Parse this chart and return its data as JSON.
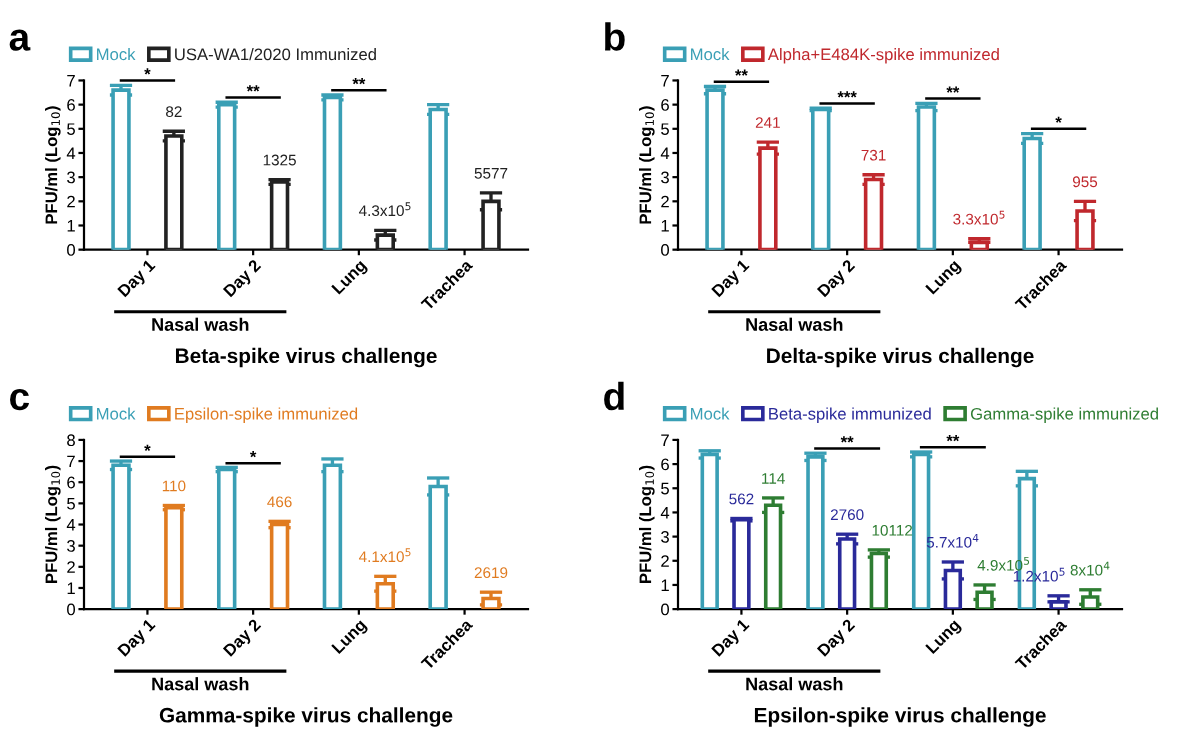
{
  "chart_data": [
    {
      "type": "bar",
      "title": "a",
      "xlabel": "Beta-spike virus challenge",
      "ylabel": "PFU/ml (Log$_{10}$)",
      "categories": [
        "Day 1",
        "Day 2",
        "Lung",
        "Trachea"
      ],
      "ylim": [
        0,
        7
      ],
      "yticks": [
        0,
        1,
        2,
        3,
        4,
        5,
        6,
        7
      ],
      "legend": "top left",
      "grid": false,
      "series": [
        {
          "name": "Mock",
          "color": "#3a9fb5",
          "values": [
            6.6,
            6.0,
            6.3,
            5.8
          ],
          "errors": [
            0.2,
            0.1,
            0.1,
            0.2
          ]
        },
        {
          "name": "USA-WA1/2020 Immunized",
          "color": "#222222",
          "values": [
            4.7,
            2.8,
            0.6,
            2.0
          ],
          "errors": [
            0.2,
            0.1,
            0.2,
            0.35
          ]
        }
      ],
      "annotations": [
        "*",
        "**",
        "**",
        "82",
        "1325",
        "4.3x10$^{5}$",
        "5577",
        "Nasal wash"
      ]
    },
    {
      "type": "bar",
      "title": "b",
      "xlabel": "Delta-spike virus challenge",
      "ylabel": "PFU/ml (Log$_{10}$)",
      "categories": [
        "Day 1",
        "Day 2",
        "Lung",
        "Trachea"
      ],
      "ylim": [
        0,
        7
      ],
      "yticks": [
        0,
        1,
        2,
        3,
        4,
        5,
        6,
        7
      ],
      "legend": "top left",
      "grid": false,
      "series": [
        {
          "name": "Mock",
          "color": "#3a9fb5",
          "values": [
            6.6,
            5.8,
            5.9,
            4.6
          ],
          "errors": [
            0.15,
            0.05,
            0.15,
            0.2
          ]
        },
        {
          "name": "Alpha+E484K-spike immunized",
          "color": "#c0282d",
          "values": [
            4.2,
            2.9,
            0.3,
            1.6
          ],
          "errors": [
            0.25,
            0.2,
            [
              0.3,
              0.45
            ],
            0.4
          ]
        }
      ],
      "annotations": [
        "**",
        "***",
        "**",
        "*",
        "241",
        "731",
        "3.3x10$^{5}$",
        "955",
        "Nasal wash"
      ]
    },
    {
      "type": "bar",
      "title": "c",
      "xlabel": "Gamma-spike virus challenge",
      "ylabel": "PFU/ml (Log$_{10}$)",
      "categories": [
        "Day 1",
        "Day 2",
        "Lung",
        "Trachea"
      ],
      "ylim": [
        0,
        8
      ],
      "yticks": [
        0,
        1,
        2,
        3,
        4,
        5,
        6,
        7,
        8
      ],
      "legend": "top left",
      "grid": false,
      "series": [
        {
          "name": "Mock",
          "color": "#3a9fb5",
          "values": [
            6.8,
            6.6,
            6.8,
            5.8
          ],
          "errors": [
            0.2,
            0.1,
            0.3,
            0.4
          ]
        },
        {
          "name": "Epsilon-spike immunized",
          "color": "#e07b20",
          "values": [
            4.8,
            4.0,
            1.2,
            0.5
          ],
          "errors": [
            0.1,
            0.15,
            0.35,
            0.3
          ]
        }
      ],
      "annotations": [
        "*",
        "*",
        "110",
        "466",
        "4.1x10$^{5}$",
        "2619",
        "Nasal wash"
      ]
    },
    {
      "type": "bar",
      "title": "d",
      "xlabel": "Epsilon-spike virus challenge",
      "ylabel": "PFU/ml (Log$_{10}$)",
      "categories": [
        "Day 1",
        "Day 2",
        "Lung",
        "Trachea"
      ],
      "ylim": [
        0,
        7
      ],
      "yticks": [
        0,
        1,
        2,
        3,
        4,
        5,
        6,
        7
      ],
      "legend": "top left",
      "grid": false,
      "series": [
        {
          "name": "Mock",
          "color": "#3a9fb5",
          "values": [
            6.4,
            6.3,
            6.4,
            5.4
          ],
          "errors": [
            0.15,
            0.15,
            0.1,
            0.3
          ]
        },
        {
          "name": "Beta-spike immunized",
          "color": "#2a2a9a",
          "values": [
            3.7,
            2.9,
            1.6,
            0.3
          ],
          "errors": [
            0.05,
            0.2,
            0.35,
            [
              0.3,
              0.55
            ]
          ]
        },
        {
          "name": "Gamma-spike immunized",
          "color": "#2e7d32",
          "values": [
            4.3,
            2.3,
            0.7,
            0.5
          ],
          "errors": [
            0.3,
            0.15,
            0.3,
            0.3
          ]
        }
      ],
      "annotations": [
        "**",
        "**",
        "562",
        "2760",
        "5.7x10$^{4}$",
        "1.2x10$^{5}$",
        "114",
        "10112",
        "4.9x10$^{5}$",
        "8x10$^{4}$",
        "Nasal wash"
      ]
    }
  ]
}
